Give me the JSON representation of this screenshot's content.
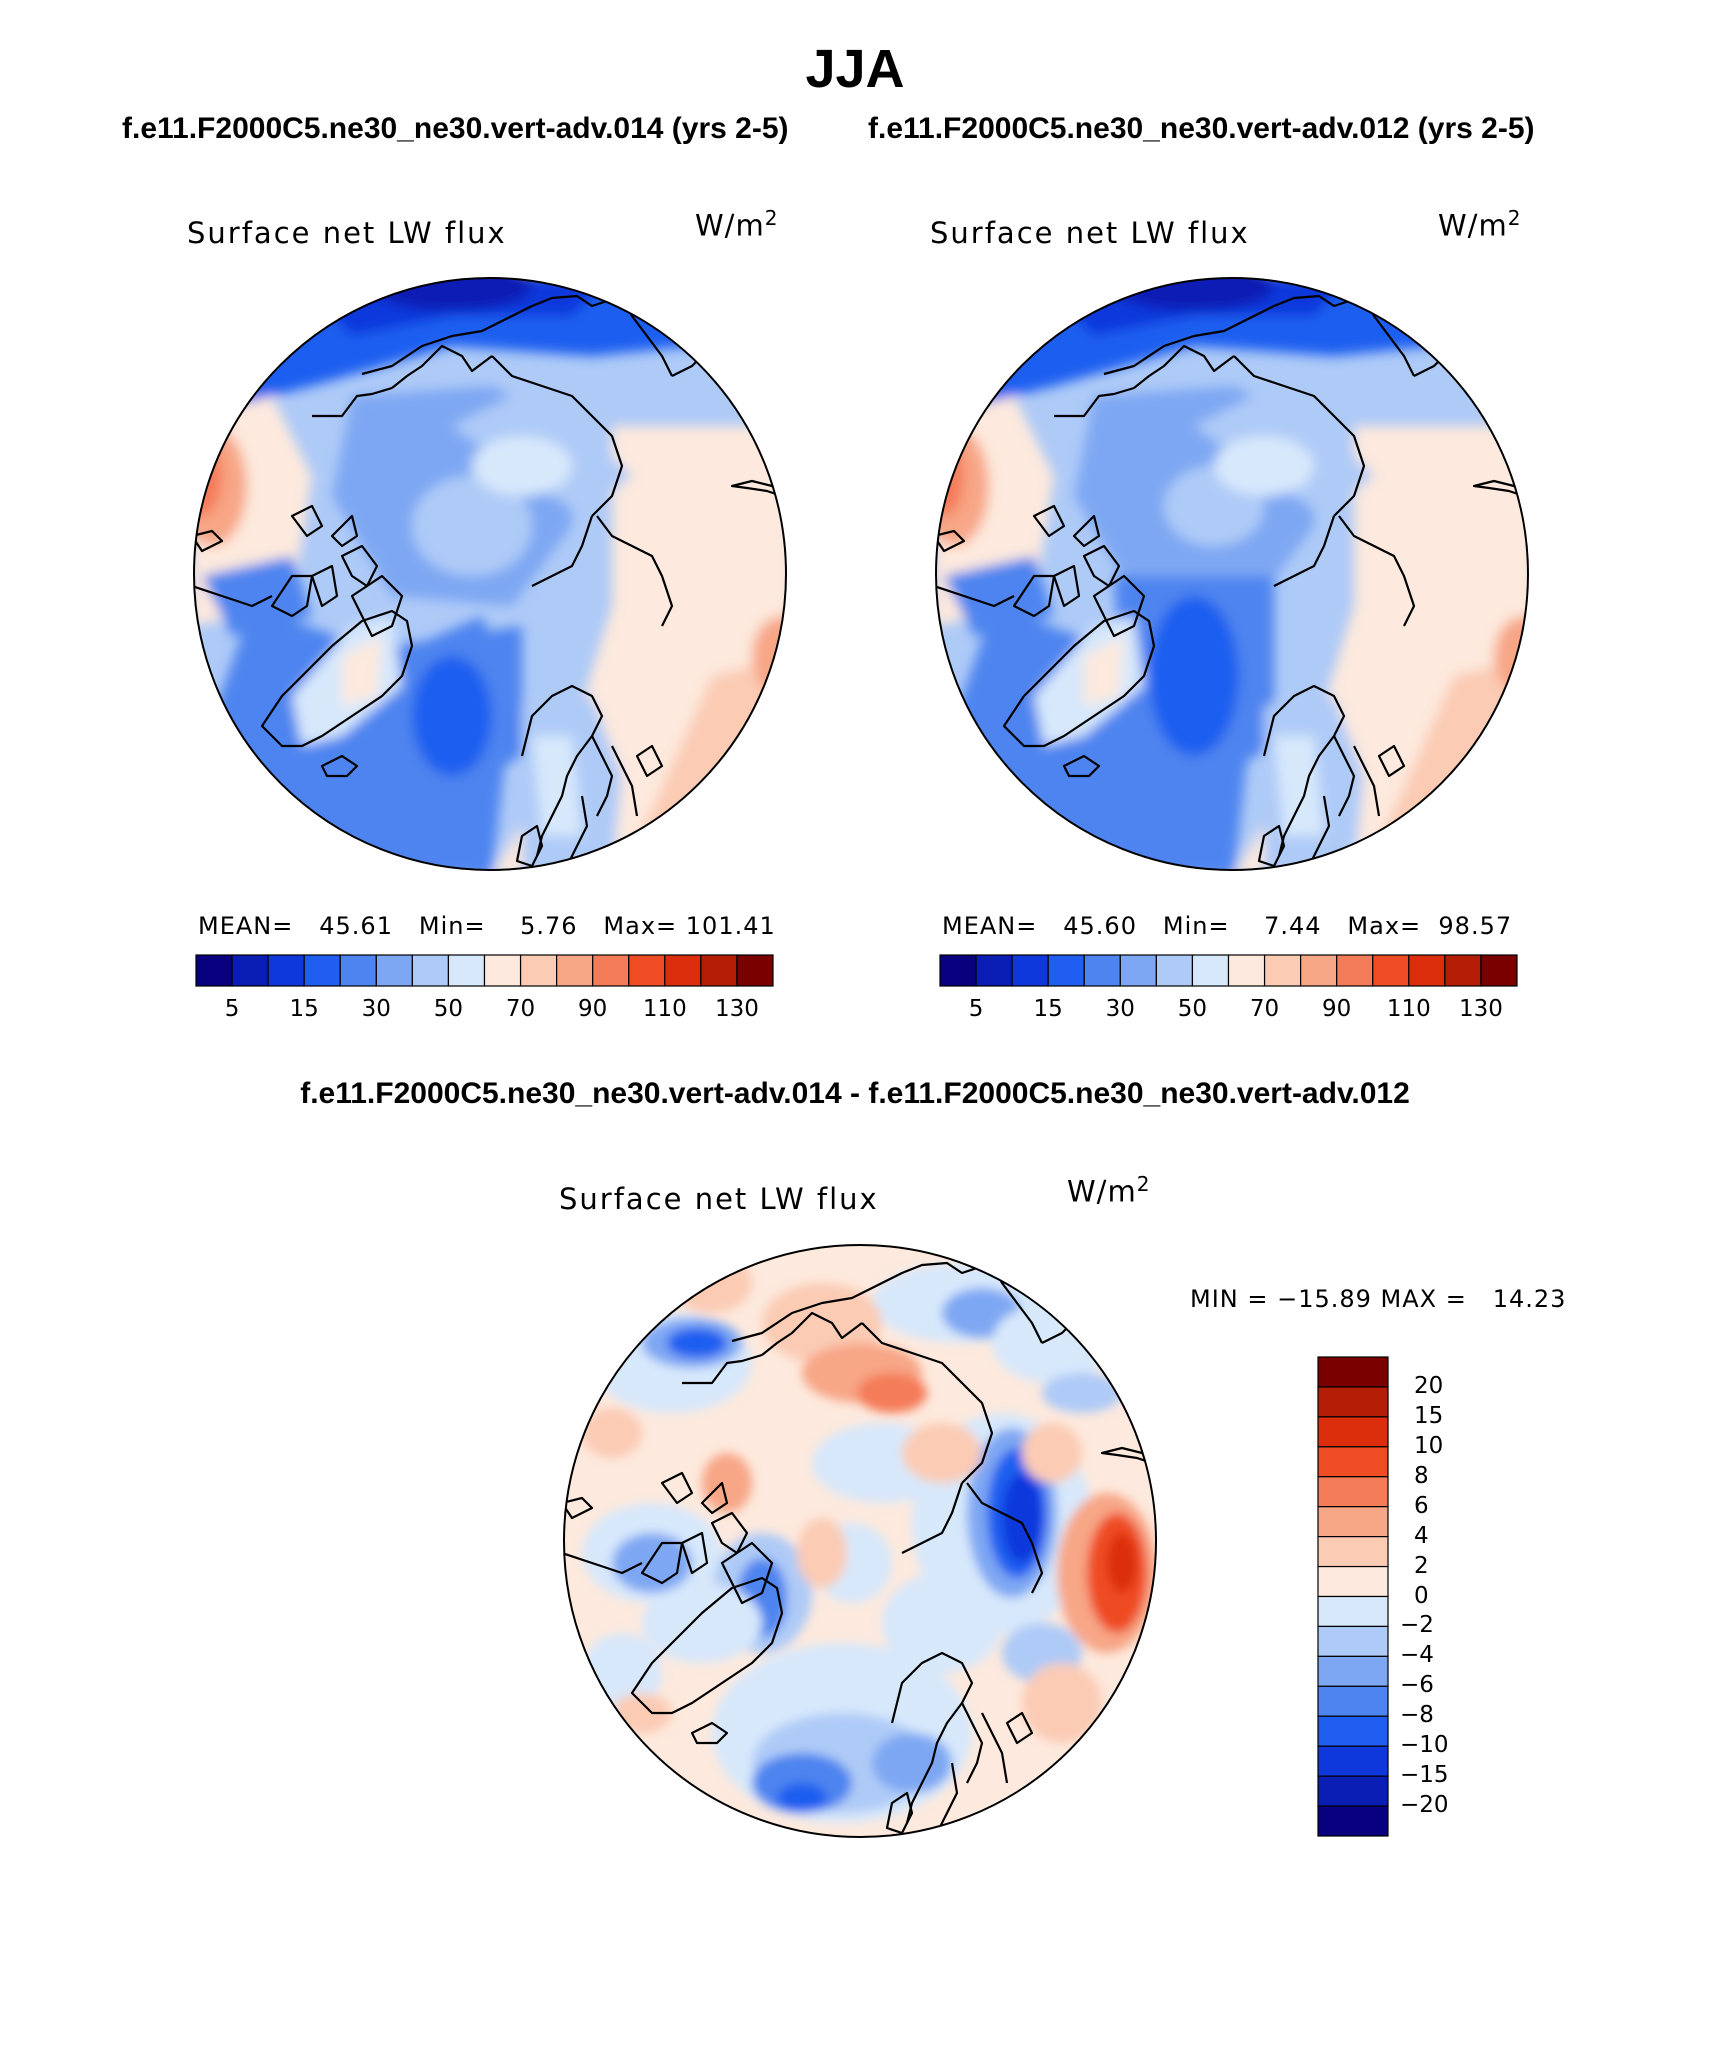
{
  "header": {
    "season": "JJA",
    "subtitle_left": "f.e11.F2000C5.ne30_ne30.vert-adv.014 (yrs 2-5)",
    "subtitle_right": "f.e11.F2000C5.ne30_ne30.vert-adv.012 (yrs 2-5)",
    "diff_title": "f.e11.F2000C5.ne30_ne30.vert-adv.014 - f.e11.F2000C5.ne30_ne30.vert-adv.012"
  },
  "panels": [
    {
      "variable": "Surface net LW flux",
      "units_base": "W/m",
      "units_exp": "2",
      "mean_label": "MEAN=",
      "mean": "45.61",
      "min_label": "Min=",
      "min": "5.76",
      "max_label": "Max=",
      "max": "101.41"
    },
    {
      "variable": "Surface net LW flux",
      "units_base": "W/m",
      "units_exp": "2",
      "mean_label": "MEAN=",
      "mean": "45.60",
      "min_label": "Min=",
      "min": "7.44",
      "max_label": "Max=",
      "max": "98.57"
    }
  ],
  "diff_panel": {
    "variable": "Surface net LW flux",
    "units_base": "W/m",
    "units_exp": "2",
    "minmax": "MIN = −15.89 MAX =   14.23"
  },
  "colorbar_abs": {
    "labels": [
      "5",
      "15",
      "30",
      "50",
      "70",
      "90",
      "110",
      "130"
    ],
    "colors": [
      "#08007e",
      "#0a1db4",
      "#0f38dc",
      "#1f5ef0",
      "#4d84ef",
      "#7ea7f3",
      "#aecaf7",
      "#d7e8fb",
      "#fde9dd",
      "#fbcbb4",
      "#f7a686",
      "#f47c58",
      "#ef4c23",
      "#dc2e0c",
      "#b41d06",
      "#7a0000"
    ]
  },
  "colorbar_diff": {
    "labels": [
      "20",
      "15",
      "10",
      "8",
      "6",
      "4",
      "2",
      "0",
      "−2",
      "−4",
      "−6",
      "−8",
      "−10",
      "−15",
      "−20"
    ],
    "colors": [
      "#7a0000",
      "#b41d06",
      "#dc2e0c",
      "#ef4c23",
      "#f47c58",
      "#f7a686",
      "#fbcbb4",
      "#fde9dd",
      "#d7e8fb",
      "#aecaf7",
      "#7ea7f3",
      "#4d84ef",
      "#1f5ef0",
      "#0f38dc",
      "#0a1db4",
      "#08007e"
    ]
  }
}
